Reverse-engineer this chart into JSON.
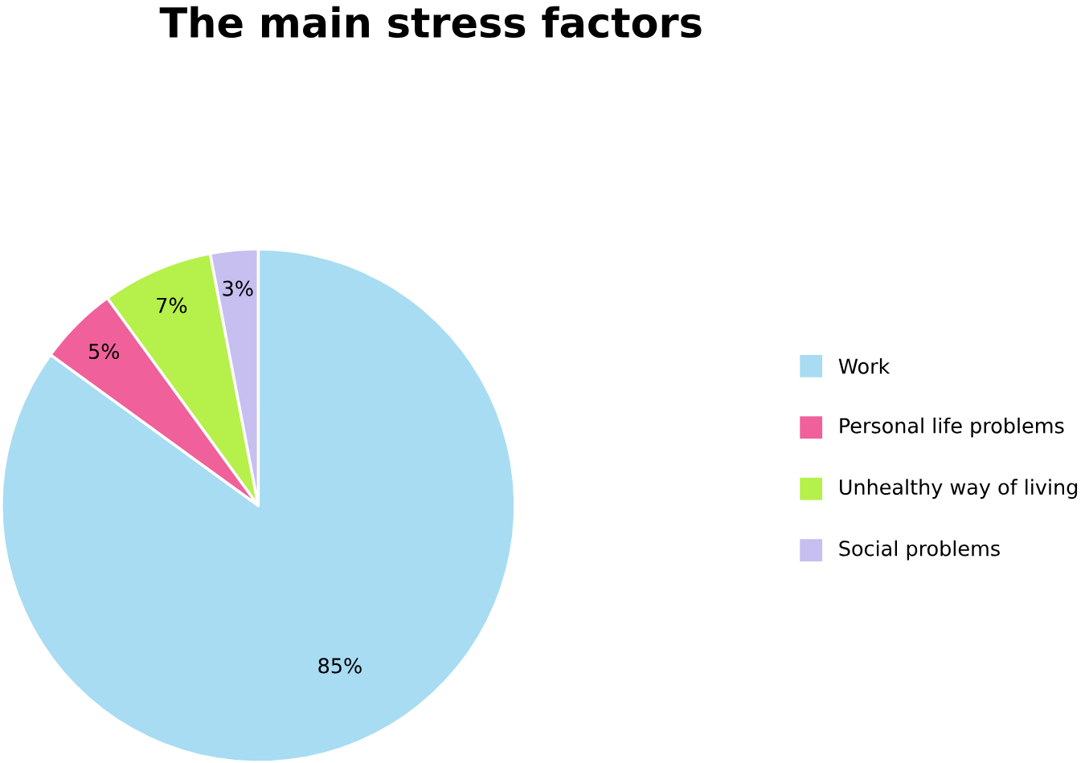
{
  "chart_data": {
    "type": "pie",
    "title": "The main stress factors",
    "categories": [
      "Work",
      "Personal life problems",
      "Unhealthy way of living",
      "Social problems"
    ],
    "values": [
      85,
      5,
      7,
      3
    ],
    "colors": [
      "#a8dcf2",
      "#f0609a",
      "#b6f04a",
      "#c6bff0"
    ],
    "value_labels": [
      "85%",
      "5%",
      "7%",
      "3%"
    ],
    "legend": "right"
  }
}
